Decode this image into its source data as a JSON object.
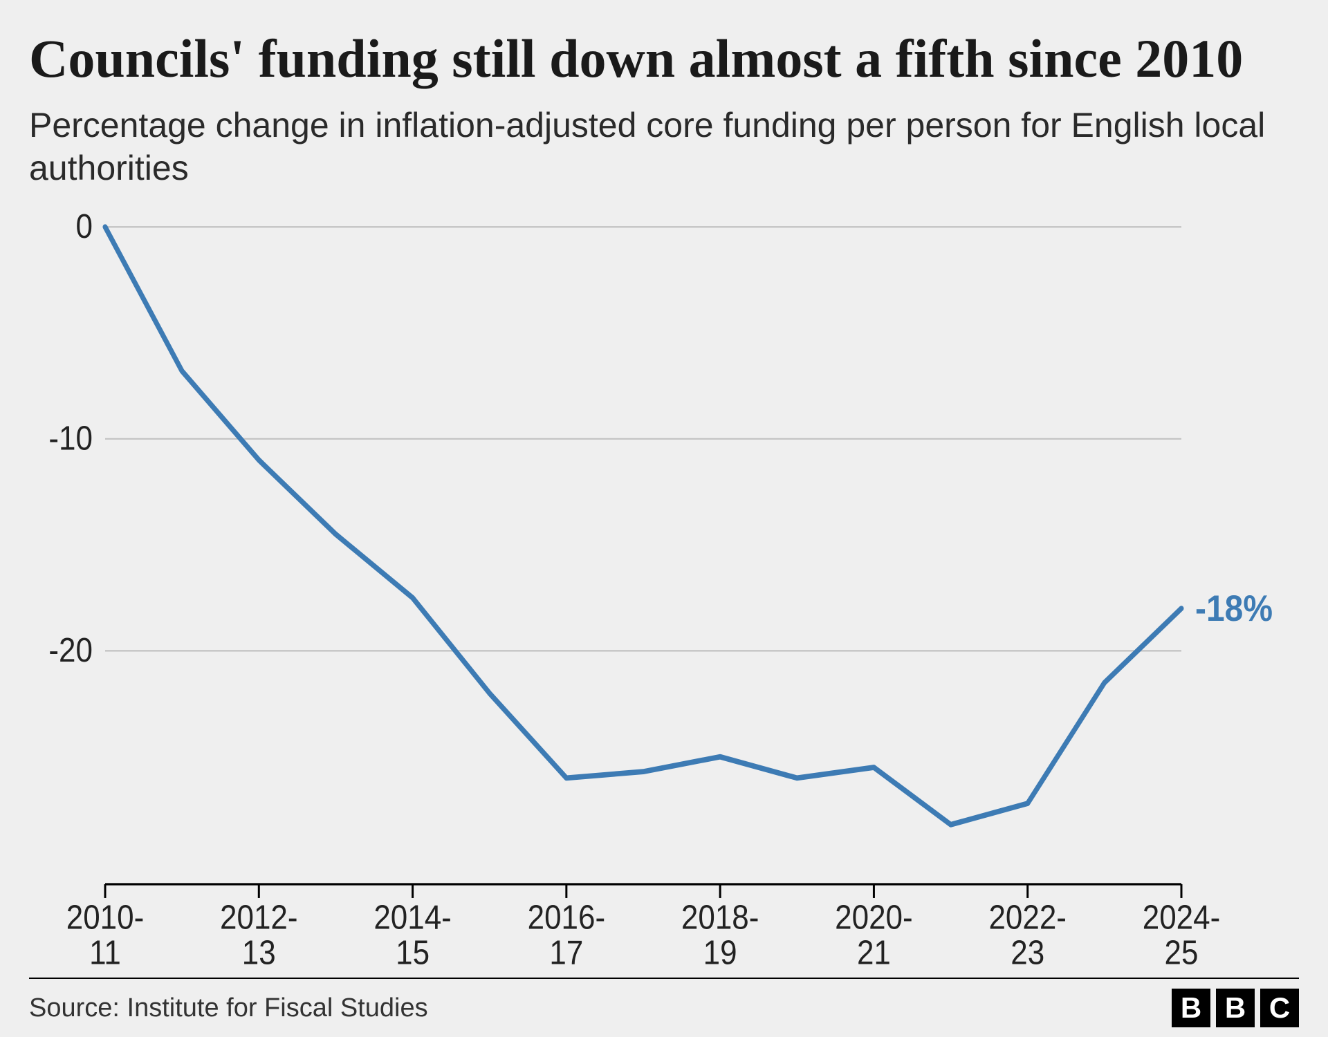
{
  "title": "Councils' funding still down almost a fifth since 2010",
  "subtitle": "Percentage change in inflation-adjusted core funding per person for English local authorities",
  "source_line": "Source: Institute for Fiscal Studies",
  "logo_letters": [
    "B",
    "B",
    "C"
  ],
  "chart": {
    "type": "line",
    "background_color": "#efefef",
    "grid_color": "#c2c2c2",
    "axis_color": "#000000",
    "line_color": "#3d7bb4",
    "line_width": 7,
    "endpoint_label": "-18%",
    "endpoint_label_color": "#3d7bb4",
    "endpoint_label_fontsize": 48,
    "endpoint_label_fontweight": 700,
    "y": {
      "min": -30,
      "max": 0,
      "ticks": [
        0,
        -10,
        -20
      ],
      "tick_labels": [
        "0",
        "-10",
        "-20"
      ],
      "tick_fontsize": 44,
      "tick_font": "sans-serif",
      "tick_color": "#222"
    },
    "x": {
      "tick_indices": [
        0,
        2,
        4,
        6,
        8,
        10,
        12,
        14
      ],
      "tick_labels": [
        "2010-11",
        "2012-13",
        "2014-15",
        "2016-17",
        "2018-19",
        "2020-21",
        "2022-23",
        "2024-25"
      ],
      "tick_fontsize": 44,
      "tick_font": "sans-serif",
      "tick_color": "#222",
      "n_points": 15
    },
    "values": [
      0.0,
      -6.8,
      -11.0,
      -14.5,
      -17.5,
      -22.0,
      -26.0,
      -25.7,
      -25.0,
      -26.0,
      -25.5,
      -28.2,
      -27.2,
      -21.5,
      -18.0
    ]
  },
  "typography": {
    "title_fontsize": 78,
    "subtitle_fontsize": 50,
    "source_fontsize": 38
  }
}
